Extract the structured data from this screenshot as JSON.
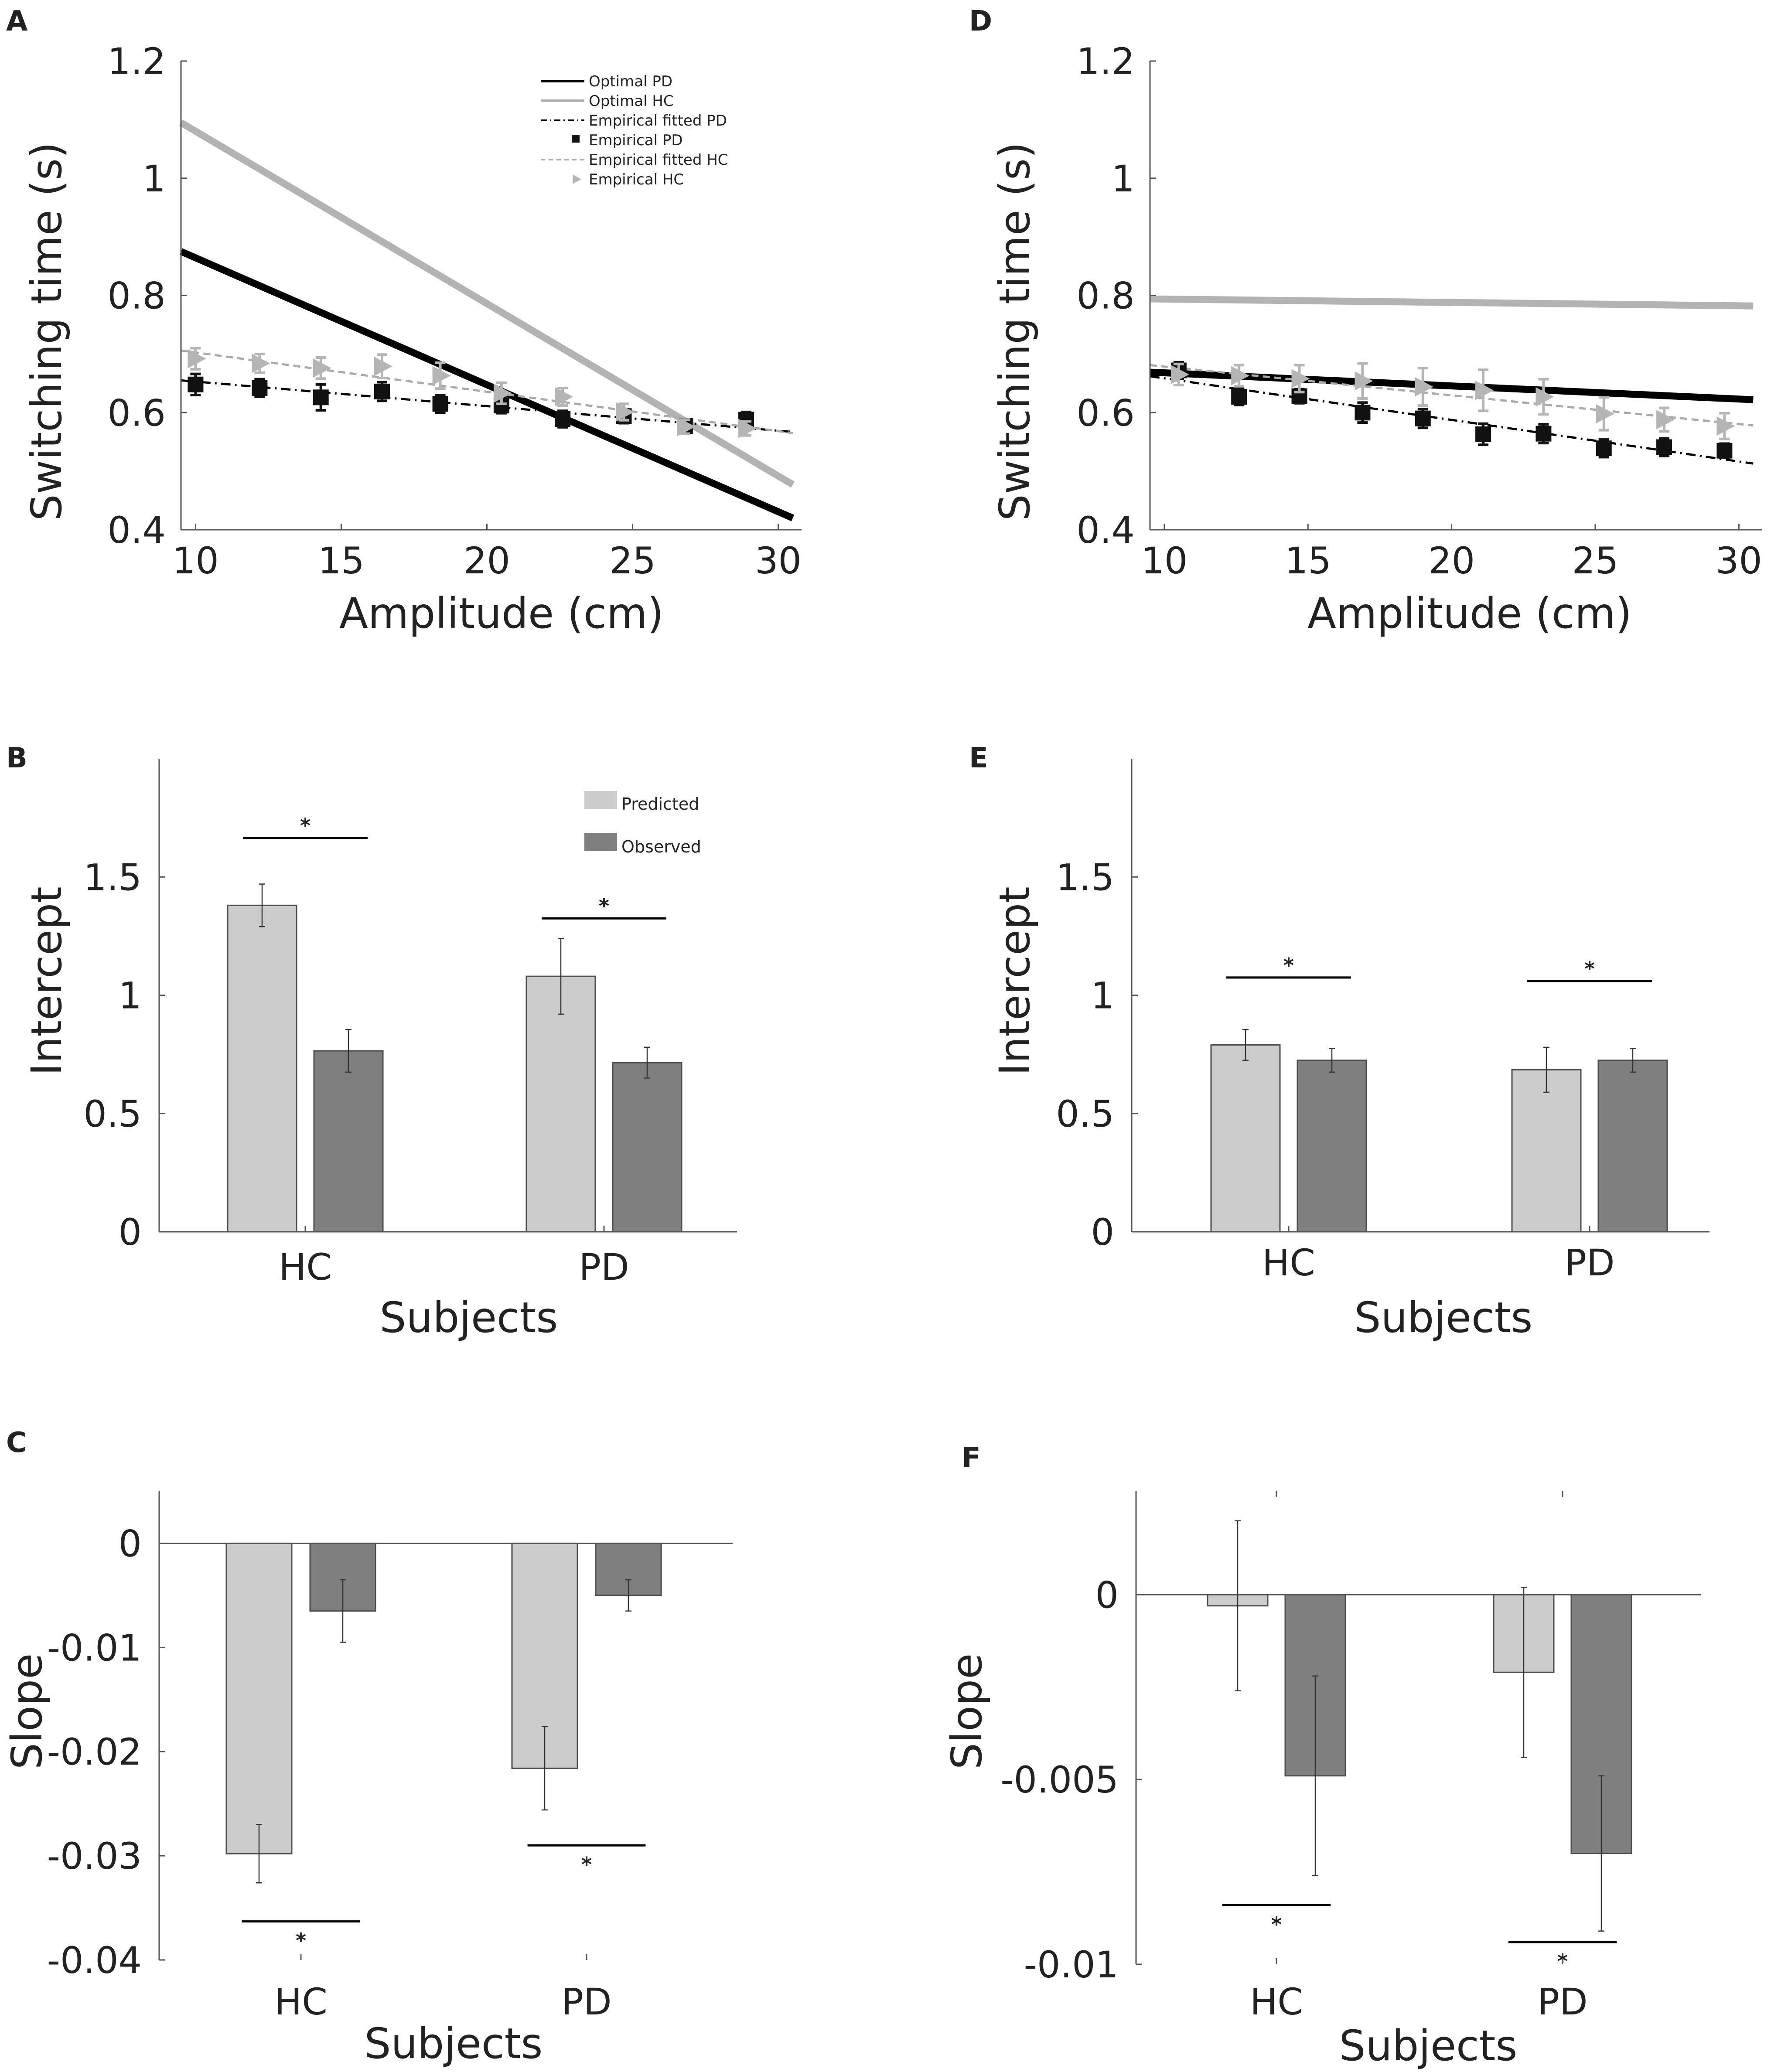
{
  "colors": {
    "optimal_pd": "#000000",
    "optimal_hc": "#b3b3b3",
    "empirical_pd": "#111111",
    "empirical_hc": "#b5b5b5",
    "predicted": "#cccccc",
    "observed": "#7f7f7f",
    "axis": "#555555"
  },
  "chart_data": [
    {
      "id": "A",
      "panel_label": "A",
      "type": "line",
      "xlabel": "Amplitude (cm)",
      "ylabel": "Switching time (s)",
      "xlim": [
        9.5,
        30.8
      ],
      "ylim": [
        0.4,
        1.2
      ],
      "xticks": [
        10,
        15,
        20,
        25,
        30
      ],
      "yticks": [
        0.4,
        0.6,
        0.8,
        1,
        1.2
      ],
      "ytick_labels": [
        "0.4",
        "0.6",
        "0.8",
        "1",
        "1.2"
      ],
      "lines": [
        {
          "name": "Optimal PD",
          "x": [
            9.5,
            30.5
          ],
          "y": [
            0.875,
            0.42
          ],
          "style": "solid-thick",
          "color": "#000000"
        },
        {
          "name": "Optimal HC",
          "x": [
            9.5,
            30.5
          ],
          "y": [
            1.095,
            0.477
          ],
          "style": "solid-thick",
          "color": "#b3b3b3"
        },
        {
          "name": "Empirical fitted PD",
          "x": [
            9.5,
            30.5
          ],
          "y": [
            0.655,
            0.567
          ],
          "style": "dashdot",
          "color": "#000000"
        },
        {
          "name": "Empirical fitted HC",
          "x": [
            9.5,
            30.5
          ],
          "y": [
            0.706,
            0.565
          ],
          "style": "dashed",
          "color": "#aaaaaa"
        }
      ],
      "points": [
        {
          "name": "Empirical PD",
          "marker": "square",
          "color": "#111111",
          "x": [
            10,
            12.2,
            14.3,
            16.4,
            18.4,
            20.5,
            22.6,
            24.7,
            26.8,
            28.9
          ],
          "y": [
            0.648,
            0.642,
            0.626,
            0.636,
            0.615,
            0.612,
            0.589,
            0.594,
            0.577,
            0.588
          ],
          "err": [
            0.018,
            0.015,
            0.022,
            0.016,
            0.015,
            0.013,
            0.014,
            0.012,
            0.01,
            0.013
          ]
        },
        {
          "name": "Empirical HC",
          "marker": "triangle-right",
          "color": "#b5b5b5",
          "x": [
            10,
            12.2,
            14.3,
            16.4,
            18.4,
            20.5,
            22.6,
            24.7,
            26.8,
            28.9
          ],
          "y": [
            0.692,
            0.684,
            0.676,
            0.679,
            0.663,
            0.633,
            0.627,
            0.601,
            0.576,
            0.573
          ],
          "err": [
            0.018,
            0.016,
            0.018,
            0.02,
            0.022,
            0.018,
            0.015,
            0.014,
            0.012,
            0.012
          ]
        }
      ],
      "legend": [
        "Optimal PD",
        "Optimal HC",
        "Empirical fitted PD",
        "Empirical PD",
        "Empirical fitted HC",
        "Empirical HC"
      ],
      "legend_position": "top-right"
    },
    {
      "id": "D",
      "panel_label": "D",
      "type": "line",
      "xlabel": "Amplitude (cm)",
      "ylabel": "Switching time (s)",
      "xlim": [
        9.5,
        30.8
      ],
      "ylim": [
        0.4,
        1.2
      ],
      "xticks": [
        10,
        15,
        20,
        25,
        30
      ],
      "yticks": [
        0.4,
        0.6,
        0.8,
        1,
        1.2
      ],
      "ytick_labels": [
        "0.4",
        "0.6",
        "0.8",
        "1",
        "1.2"
      ],
      "lines": [
        {
          "name": "Optimal PD",
          "x": [
            9.5,
            30.5
          ],
          "y": [
            0.669,
            0.622
          ],
          "style": "solid-thick",
          "color": "#000000"
        },
        {
          "name": "Optimal HC",
          "x": [
            9.5,
            30.5
          ],
          "y": [
            0.794,
            0.782
          ],
          "style": "solid-thick",
          "color": "#b3b3b3"
        },
        {
          "name": "Empirical fitted PD",
          "x": [
            9.5,
            30.5
          ],
          "y": [
            0.662,
            0.513
          ],
          "style": "dashdot",
          "color": "#000000"
        },
        {
          "name": "Empirical fitted HC",
          "x": [
            9.5,
            30.5
          ],
          "y": [
            0.681,
            0.578
          ],
          "style": "dashed",
          "color": "#aaaaaa"
        }
      ],
      "points": [
        {
          "name": "Empirical PD",
          "marker": "square",
          "color": "#111111",
          "x": [
            10.5,
            12.6,
            14.7,
            16.9,
            19,
            21.1,
            23.2,
            25.3,
            27.4,
            29.5
          ],
          "y": [
            0.672,
            0.627,
            0.628,
            0.6,
            0.59,
            0.563,
            0.564,
            0.539,
            0.541,
            0.535
          ],
          "err": [
            0.014,
            0.014,
            0.012,
            0.017,
            0.016,
            0.018,
            0.016,
            0.015,
            0.015,
            0.012
          ]
        },
        {
          "name": "Empirical HC",
          "marker": "triangle-right",
          "color": "#b5b5b5",
          "x": [
            10.5,
            12.6,
            14.7,
            16.9,
            19,
            21.1,
            23.2,
            25.3,
            27.4,
            29.5
          ],
          "y": [
            0.665,
            0.663,
            0.658,
            0.654,
            0.644,
            0.638,
            0.627,
            0.598,
            0.588,
            0.577
          ],
          "err": [
            0.018,
            0.018,
            0.023,
            0.03,
            0.032,
            0.035,
            0.03,
            0.028,
            0.02,
            0.022
          ]
        }
      ]
    },
    {
      "id": "B",
      "panel_label": "B",
      "type": "bar",
      "xlabel": "Subjects",
      "ylabel": "Intercept",
      "categories": [
        "HC",
        "PD"
      ],
      "ylim": [
        0,
        2
      ],
      "yticks": [
        0,
        0.5,
        1,
        1.5
      ],
      "ytick_labels": [
        "0",
        "0.5",
        "1",
        "1.5"
      ],
      "series": [
        {
          "name": "Predicted",
          "values": [
            1.38,
            1.08
          ],
          "err": [
            0.09,
            0.16
          ],
          "color": "#cccccc"
        },
        {
          "name": "Observed",
          "values": [
            0.765,
            0.715
          ],
          "err": [
            0.09,
            0.065
          ],
          "color": "#7f7f7f"
        }
      ],
      "significance": [
        {
          "category": "HC",
          "label": "*",
          "y": 1.665
        },
        {
          "category": "PD",
          "label": "*",
          "y": 1.325
        }
      ],
      "legend": [
        "Predicted",
        "Observed"
      ],
      "legend_position": "top-right"
    },
    {
      "id": "E",
      "panel_label": "E",
      "type": "bar",
      "xlabel": "Subjects",
      "ylabel": "Intercept",
      "categories": [
        "HC",
        "PD"
      ],
      "ylim": [
        0,
        2
      ],
      "yticks": [
        0,
        0.5,
        1,
        1.5
      ],
      "ytick_labels": [
        "0",
        "0.5",
        "1",
        "1.5"
      ],
      "series": [
        {
          "name": "Predicted",
          "values": [
            0.79,
            0.685
          ],
          "err": [
            0.065,
            0.095
          ],
          "color": "#cccccc"
        },
        {
          "name": "Observed",
          "values": [
            0.725,
            0.725
          ],
          "err": [
            0.05,
            0.05
          ],
          "color": "#7f7f7f"
        }
      ],
      "significance": [
        {
          "category": "HC",
          "label": "*",
          "y": 1.075
        },
        {
          "category": "PD",
          "label": "*",
          "y": 1.06
        }
      ]
    },
    {
      "id": "C",
      "panel_label": "C",
      "type": "bar",
      "xlabel": "Subjects",
      "ylabel": "Slope",
      "categories": [
        "HC",
        "PD"
      ],
      "ylim": [
        -0.04,
        0.005
      ],
      "yticks": [
        -0.04,
        -0.03,
        -0.02,
        -0.01,
        0
      ],
      "ytick_labels": [
        "-0.04",
        "-0.03",
        "-0.02",
        "-0.01",
        "0"
      ],
      "series": [
        {
          "name": "Predicted",
          "values": [
            -0.0298,
            -0.0216
          ],
          "err": [
            0.0028,
            0.004
          ],
          "color": "#cccccc"
        },
        {
          "name": "Observed",
          "values": [
            -0.0065,
            -0.005
          ],
          "err": [
            0.003,
            0.0015
          ],
          "color": "#7f7f7f"
        }
      ],
      "significance": [
        {
          "category": "HC",
          "label": "*",
          "y": -0.0363
        },
        {
          "category": "PD",
          "label": "*",
          "y": -0.029
        }
      ]
    },
    {
      "id": "F",
      "panel_label": "F",
      "type": "bar",
      "xlabel": "Subjects",
      "ylabel": "Slope",
      "categories": [
        "HC",
        "PD"
      ],
      "ylim": [
        -0.01,
        0.0028
      ],
      "yticks": [
        -0.01,
        -0.005,
        0
      ],
      "ytick_labels": [
        "-0.01",
        "-0.005",
        "0"
      ],
      "series": [
        {
          "name": "Predicted",
          "values": [
            -0.0003,
            -0.0021
          ],
          "err": [
            0.0023,
            0.0023
          ],
          "color": "#cccccc"
        },
        {
          "name": "Observed",
          "values": [
            -0.0049,
            -0.007
          ],
          "err": [
            0.0027,
            0.0021
          ],
          "color": "#7f7f7f"
        }
      ],
      "significance": [
        {
          "category": "HC",
          "label": "*",
          "y": -0.0084
        },
        {
          "category": "PD",
          "label": "*",
          "y": -0.0094
        }
      ]
    }
  ]
}
